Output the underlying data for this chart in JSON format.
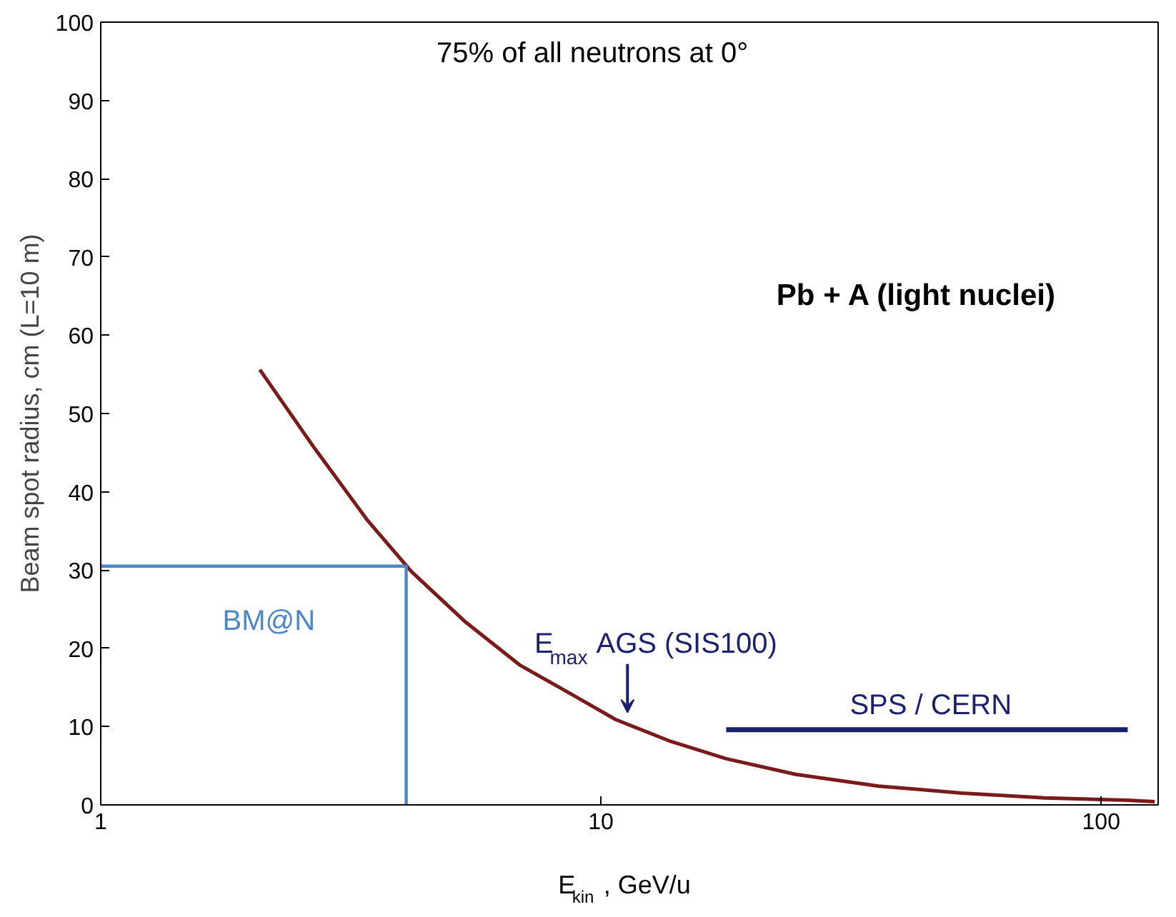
{
  "chart_data": {
    "type": "line",
    "xlabel": "E$_{kin}$, GeV/u",
    "ylabel": "Beam spot radius, cm (L=10 m)",
    "log": "x",
    "xlim": [
      1,
      130
    ],
    "xticks": [
      1,
      10,
      100
    ],
    "ylim": [
      0,
      100
    ],
    "yticks": [
      0,
      10,
      20,
      30,
      40,
      50,
      60,
      70,
      80,
      90,
      100
    ],
    "grid": false,
    "marker": "none",
    "line_style": "solid",
    "series": [
      {
        "color": "#7a1a1a",
        "x": [
          2.08,
          2.68,
          3.41,
          4.18,
          5.33,
          6.87,
          8.86,
          10.7,
          13.8,
          17.8,
          24.5,
          35.9,
          52.6,
          77.1,
          113,
          128
        ],
        "values": [
          55.6,
          45.5,
          36.4,
          29.8,
          23.5,
          17.9,
          13.9,
          10.9,
          8.1,
          5.9,
          3.9,
          2.4,
          1.5,
          0.9,
          0.6,
          0.4
        ]
      },
      {
        "name": "BM@N",
        "color": "#4a86c8",
        "x": [
          1,
          4.08,
          4.08
        ],
        "values": [
          30.5,
          30.5,
          0
        ]
      },
      {
        "name": "SPS / CERN",
        "color": "#1a1f6e",
        "x": [
          17.8,
          113
        ],
        "values": [
          9.6,
          9.6
        ]
      }
    ],
    "annotations": [
      "75% of all neutrons at 0°",
      "Pb + A (light nuclei)",
      {
        "text": "E$_{max}$ AGS (SIS100)",
        "x": 11.3,
        "y": 11
      }
    ]
  }
}
